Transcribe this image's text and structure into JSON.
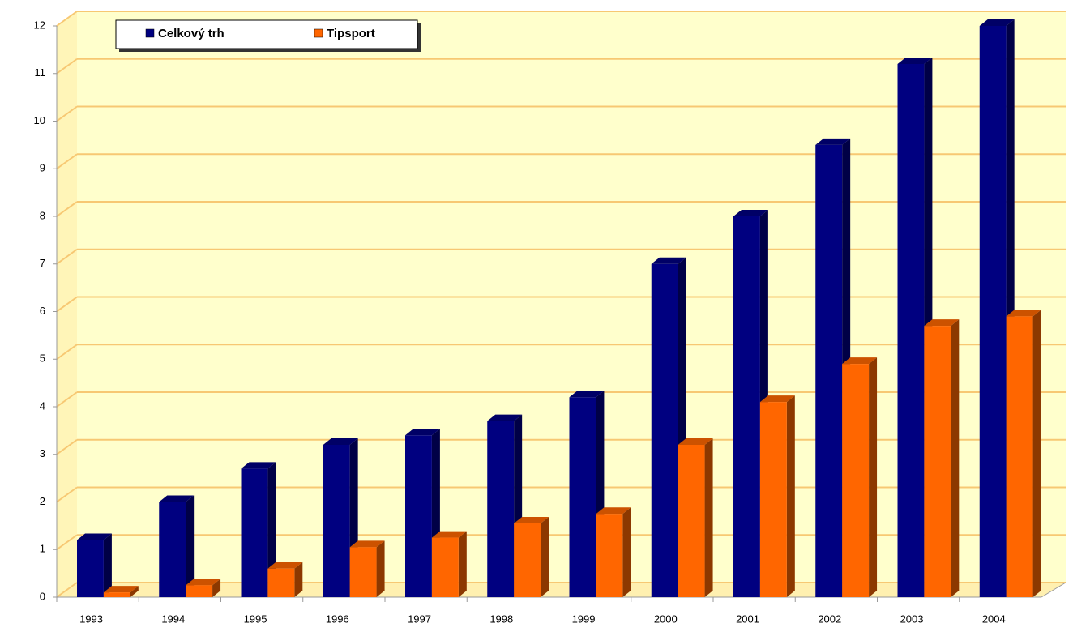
{
  "chart_data": {
    "type": "bar",
    "categories": [
      "1993",
      "1994",
      "1995",
      "1996",
      "1997",
      "1998",
      "1999",
      "2000",
      "2001",
      "2002",
      "2003",
      "2004"
    ],
    "series": [
      {
        "name": "Celkový trh",
        "color": "#000080",
        "values": [
          1.2,
          2.0,
          2.7,
          3.2,
          3.4,
          3.7,
          4.2,
          7.0,
          8.0,
          9.5,
          11.2,
          12.0
        ]
      },
      {
        "name": "Tipsport",
        "color": "#ff6600",
        "values": [
          0.1,
          0.25,
          0.6,
          1.05,
          1.25,
          1.55,
          1.75,
          3.2,
          4.1,
          4.9,
          5.7,
          5.9
        ]
      }
    ],
    "ylim": [
      0,
      12
    ],
    "yticks": [
      0,
      1,
      2,
      3,
      4,
      5,
      6,
      7,
      8,
      9,
      10,
      11,
      12
    ],
    "grid": true,
    "legend": "top-left"
  }
}
